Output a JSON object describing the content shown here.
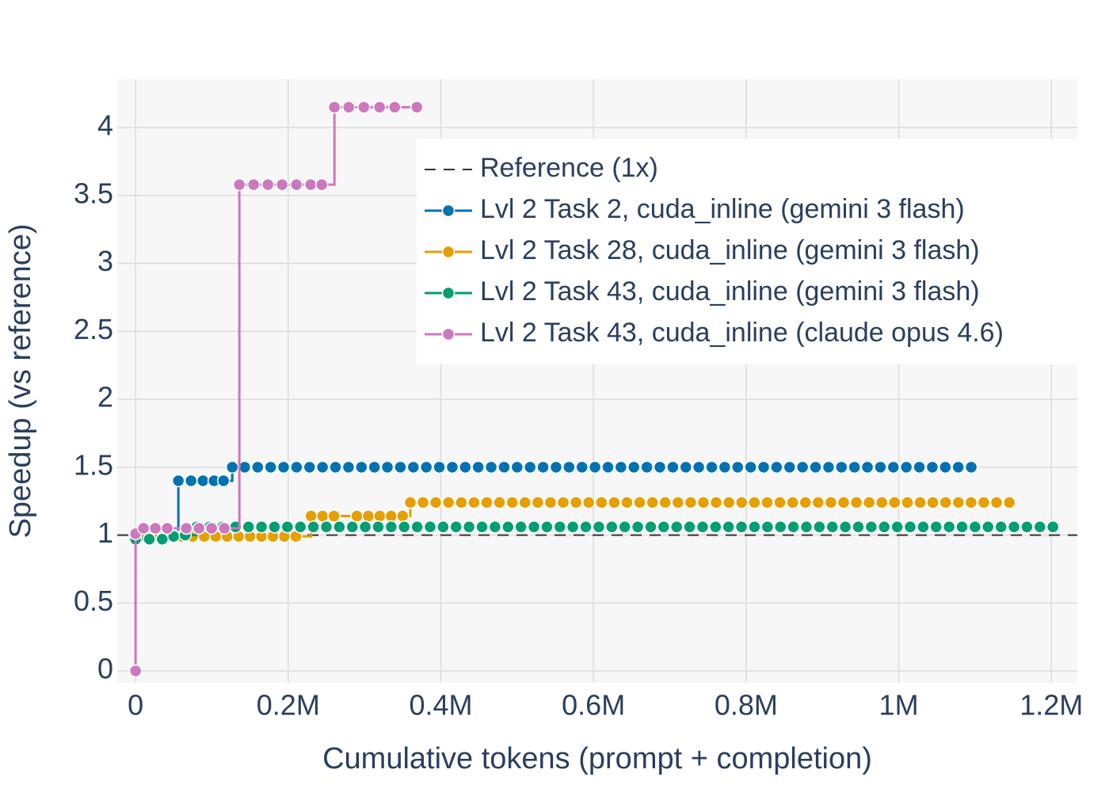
{
  "chart_data": {
    "type": "line",
    "line_shape": "hv",
    "xlabel": "Cumulative tokens (prompt + completion)",
    "ylabel": "Speedup (vs reference)",
    "xlim": [
      -24000,
      1234000
    ],
    "ylim": [
      -0.087,
      4.356
    ],
    "xticks": [
      0,
      {
        "value": 200000,
        "label": "0.2M"
      },
      {
        "value": 400000,
        "label": "0.4M"
      },
      {
        "value": 600000,
        "label": "0.6M"
      },
      {
        "value": 800000,
        "label": "0.8M"
      },
      {
        "value": 1000000,
        "label": "1M"
      },
      {
        "value": 1200000,
        "label": "1.2M"
      }
    ],
    "yticks": [
      0,
      0.5,
      1,
      1.5,
      2,
      2.5,
      3,
      3.5,
      4
    ],
    "grid": true,
    "legend": "top right",
    "reference": {
      "name": "Reference (1x)",
      "value": 1,
      "color": "#333333"
    },
    "series": [
      {
        "name": "Lvl 2 Task 2, cuda_inline (gemini 3 flash)",
        "color": "#0072b2",
        "x": [
          0,
          18700,
          34300,
          46700,
          56100,
          72700,
          88300,
          102800,
          115300,
          126700,
          143000,
          160000,
          177000,
          194000,
          211000,
          228000,
          245000,
          262000,
          279000,
          296000,
          313000,
          330000,
          347000,
          364000,
          381000,
          398000,
          415000,
          432000,
          449000,
          466000,
          483000,
          500000,
          517000,
          534000,
          551000,
          568000,
          585000,
          602000,
          619000,
          636000,
          653000,
          670000,
          687000,
          704000,
          721000,
          738000,
          755000,
          772000,
          789000,
          806000,
          823000,
          840000,
          857000,
          874000,
          891000,
          908000,
          925000,
          942000,
          959000,
          976000,
          993000,
          1010000,
          1027000,
          1044000,
          1061000,
          1078000,
          1095000
        ],
        "values": [
          0.97,
          0.98,
          0.98,
          0.99,
          1.4,
          1.4,
          1.4,
          1.4,
          1.4,
          1.5,
          1.5,
          1.5,
          1.5,
          1.5,
          1.5,
          1.5,
          1.5,
          1.5,
          1.5,
          1.5,
          1.5,
          1.5,
          1.5,
          1.5,
          1.5,
          1.5,
          1.5,
          1.5,
          1.5,
          1.5,
          1.5,
          1.5,
          1.5,
          1.5,
          1.5,
          1.5,
          1.5,
          1.5,
          1.5,
          1.5,
          1.5,
          1.5,
          1.5,
          1.5,
          1.5,
          1.5,
          1.5,
          1.5,
          1.5,
          1.5,
          1.5,
          1.5,
          1.5,
          1.5,
          1.5,
          1.5,
          1.5,
          1.5,
          1.5,
          1.5,
          1.5,
          1.5,
          1.5,
          1.5,
          1.5,
          1.5,
          1.5
        ]
      },
      {
        "name": "Lvl 2 Task 28, cuda_inline (gemini 3 flash)",
        "color": "#e69f00",
        "x": [
          0,
          15000,
          30000,
          45000,
          60000,
          75000,
          90000,
          105000,
          120000,
          135000,
          150000,
          165000,
          180000,
          195000,
          210000,
          230000,
          245000,
          260000,
          290000,
          305000,
          320000,
          335000,
          350000,
          360000,
          376700,
          393400,
          410100,
          426800,
          443500,
          460200,
          476900,
          493600,
          510300,
          527000,
          543700,
          560400,
          577100,
          593800,
          610500,
          627200,
          643900,
          660600,
          677300,
          694000,
          710700,
          727400,
          744100,
          760800,
          777500,
          794200,
          810900,
          827600,
          844300,
          861000,
          877700,
          894400,
          911100,
          927800,
          944500,
          961200,
          977900,
          994600,
          1011300,
          1028000,
          1044700,
          1061400,
          1078100,
          1094800,
          1111500,
          1128200,
          1144900
        ],
        "values": [
          0.98,
          0.99,
          0.99,
          0.99,
          0.99,
          0.99,
          0.99,
          0.99,
          0.99,
          0.99,
          0.99,
          0.99,
          0.99,
          0.99,
          0.99,
          1.14,
          1.14,
          1.14,
          1.14,
          1.14,
          1.14,
          1.14,
          1.14,
          1.24,
          1.24,
          1.24,
          1.24,
          1.24,
          1.24,
          1.24,
          1.24,
          1.24,
          1.24,
          1.24,
          1.24,
          1.24,
          1.24,
          1.24,
          1.24,
          1.24,
          1.24,
          1.24,
          1.24,
          1.24,
          1.24,
          1.24,
          1.24,
          1.24,
          1.24,
          1.24,
          1.24,
          1.24,
          1.24,
          1.24,
          1.24,
          1.24,
          1.24,
          1.24,
          1.24,
          1.24,
          1.24,
          1.24,
          1.24,
          1.24,
          1.24,
          1.24,
          1.24,
          1.24,
          1.24,
          1.24,
          1.24
        ]
      },
      {
        "name": "Lvl 2 Task 43, cuda_inline (gemini 3 flash)",
        "color": "#029e73",
        "x": [
          0,
          18000,
          35000,
          50000,
          65000,
          80000,
          97000,
          114000,
          131000,
          148000,
          165000,
          182000,
          199000,
          216000,
          233000,
          250000,
          267000,
          284000,
          301000,
          318000,
          335000,
          352000,
          369000,
          386000,
          403000,
          420000,
          437000,
          454000,
          471000,
          488000,
          505000,
          522000,
          539000,
          556000,
          573000,
          590000,
          607000,
          624000,
          641000,
          658000,
          675000,
          692000,
          709000,
          726000,
          743000,
          760000,
          777000,
          794000,
          811000,
          828000,
          845000,
          862000,
          879000,
          896000,
          913000,
          930000,
          947000,
          964000,
          981000,
          998000,
          1015000,
          1032000,
          1049000,
          1066000,
          1083000,
          1100000,
          1117000,
          1134000,
          1151000,
          1168000,
          1185000,
          1202000
        ],
        "values": [
          0.97,
          0.97,
          0.97,
          0.99,
          1.0,
          1.06,
          1.06,
          1.06,
          1.06,
          1.06,
          1.06,
          1.06,
          1.06,
          1.06,
          1.06,
          1.06,
          1.06,
          1.06,
          1.06,
          1.06,
          1.06,
          1.06,
          1.06,
          1.06,
          1.06,
          1.06,
          1.06,
          1.06,
          1.06,
          1.06,
          1.06,
          1.06,
          1.06,
          1.06,
          1.06,
          1.06,
          1.06,
          1.06,
          1.06,
          1.06,
          1.06,
          1.06,
          1.06,
          1.06,
          1.06,
          1.06,
          1.06,
          1.06,
          1.06,
          1.06,
          1.06,
          1.06,
          1.06,
          1.06,
          1.06,
          1.06,
          1.06,
          1.06,
          1.06,
          1.06,
          1.06,
          1.06,
          1.06,
          1.06,
          1.06,
          1.06,
          1.06,
          1.06,
          1.06,
          1.06,
          1.06,
          1.06
        ]
      },
      {
        "name": "Lvl 2 Task 43, cuda_inline (claude opus 4.6)",
        "color": "#cc78bc",
        "x": [
          0,
          0,
          10400,
          26000,
          41500,
          66500,
          83100,
          99700,
          116300,
          136000,
          154700,
          173400,
          192100,
          210800,
          229500,
          244000,
          260600,
          279300,
          299100,
          319800,
          339600,
          368600
        ],
        "values": [
          0,
          1.01,
          1.05,
          1.05,
          1.05,
          1.05,
          1.05,
          1.05,
          1.05,
          3.58,
          3.58,
          3.58,
          3.58,
          3.58,
          3.58,
          3.58,
          4.15,
          4.15,
          4.15,
          4.15,
          4.15,
          4.15
        ]
      }
    ]
  }
}
